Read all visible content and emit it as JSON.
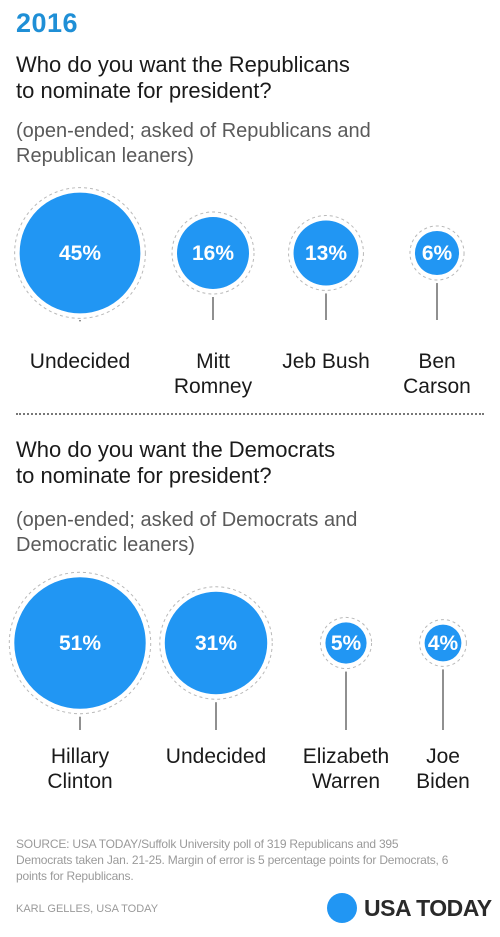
{
  "year": "2016",
  "republican": {
    "question": "Who do you want the Republicans\nto nominate for president?",
    "note": "(open-ended; asked of Republicans and\nRepublican leaners)"
  },
  "democrat": {
    "question": "Who do you want the Democrats\nto nominate for president?",
    "note": "(open-ended; asked of Democrats and\nDemocratic leaners)"
  },
  "chart_data": [
    {
      "type": "bubble",
      "title": "Who do you want the Republicans to nominate for president?",
      "categories": [
        "Undecided",
        "Mitt\nRomney",
        "Jeb Bush",
        "Ben\nCarson"
      ],
      "values": [
        45,
        16,
        13,
        6
      ],
      "value_labels": [
        "45%",
        "16%",
        "13%",
        "6%"
      ],
      "unit": "%",
      "color": "#2196f3"
    },
    {
      "type": "bubble",
      "title": "Who do you want the Democrats to nominate for president?",
      "categories": [
        "Hillary\nClinton",
        "Undecided",
        "Elizabeth\nWarren",
        "Joe\nBiden"
      ],
      "values": [
        51,
        31,
        5,
        4
      ],
      "value_labels": [
        "51%",
        "31%",
        "5%",
        "4%"
      ],
      "unit": "%",
      "color": "#2196f3"
    }
  ],
  "source": "SOURCE:  USA TODAY/Suffolk University poll of 319 Republicans and 395 Democrats taken Jan. 21-25. Margin of error is 5 percentage points for Democrats, 6 points for Republicans.",
  "credit": "KARL GELLES, USA TODAY",
  "logo_text": "USA TODAY",
  "colors": {
    "accent": "#1f8fd6",
    "bubble": "#2196f3"
  }
}
